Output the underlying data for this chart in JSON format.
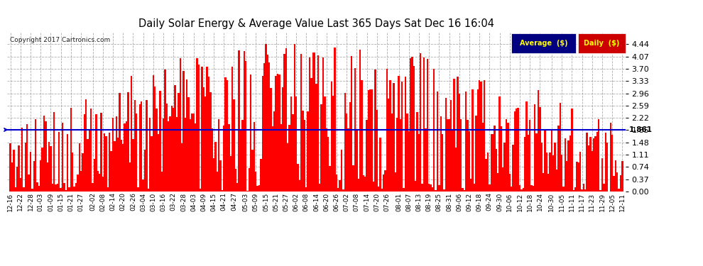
{
  "title": "Daily Solar Energy & Average Value Last 365 Days Sat Dec 16 16:04",
  "copyright": "Copyright 2017 Cartronics.com",
  "average_value": 1.861,
  "ylim": [
    0,
    4.81
  ],
  "yticks": [
    0.0,
    0.37,
    0.74,
    1.11,
    1.48,
    1.85,
    2.22,
    2.59,
    2.96,
    3.33,
    3.7,
    4.07,
    4.44
  ],
  "bar_color": "#FF0000",
  "average_line_color": "#0000CC",
  "background_color": "#FFFFFF",
  "plot_bg_color": "#FFFFFF",
  "grid_color": "#999999",
  "title_color": "#000000",
  "legend_avg_bg": "#000080",
  "legend_daily_bg": "#CC0000",
  "legend_text_color": "#FFFF00",
  "avg_label_color": "#000000",
  "x_labels": [
    "12-16",
    "12-22",
    "12-28",
    "01-03",
    "01-09",
    "01-15",
    "01-21",
    "01-27",
    "02-02",
    "02-08",
    "02-14",
    "02-20",
    "02-26",
    "03-04",
    "03-10",
    "03-16",
    "03-22",
    "03-28",
    "04-03",
    "04-09",
    "04-15",
    "04-21",
    "04-27",
    "05-03",
    "05-09",
    "05-15",
    "05-21",
    "05-27",
    "06-02",
    "06-08",
    "06-14",
    "06-20",
    "06-26",
    "07-02",
    "07-08",
    "07-14",
    "07-20",
    "07-26",
    "08-01",
    "08-07",
    "08-13",
    "08-19",
    "08-25",
    "08-31",
    "09-06",
    "09-12",
    "09-18",
    "09-24",
    "09-30",
    "10-06",
    "10-12",
    "10-18",
    "10-24",
    "10-30",
    "11-05",
    "11-11",
    "11-17",
    "11-23",
    "11-29",
    "12-05",
    "12-11"
  ],
  "num_bars": 365
}
